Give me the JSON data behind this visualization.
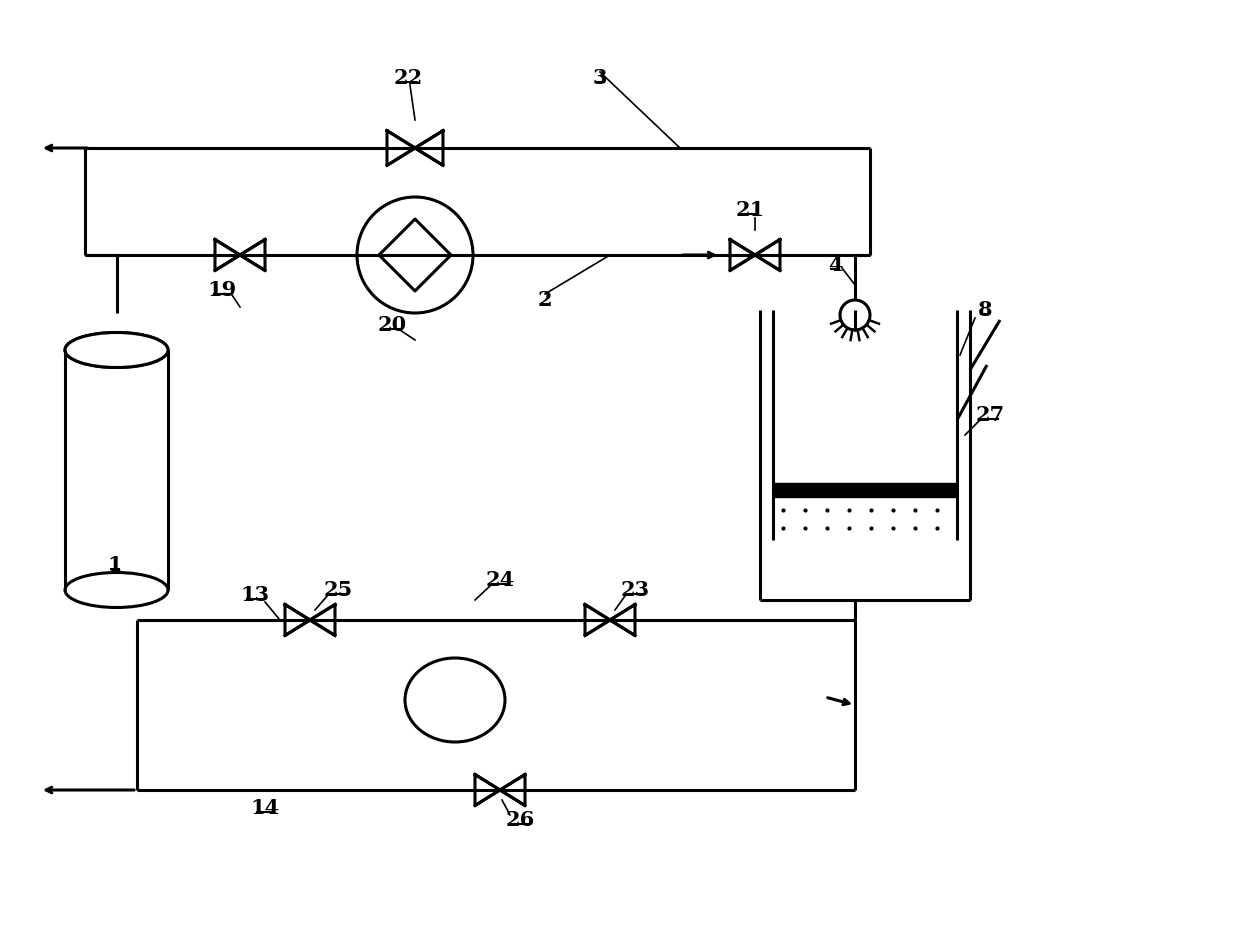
{
  "bg_color": "#ffffff",
  "line_color": "#000000",
  "lw": 2.2,
  "fig_width": 12.4,
  "fig_height": 9.35,
  "dpi": 100
}
